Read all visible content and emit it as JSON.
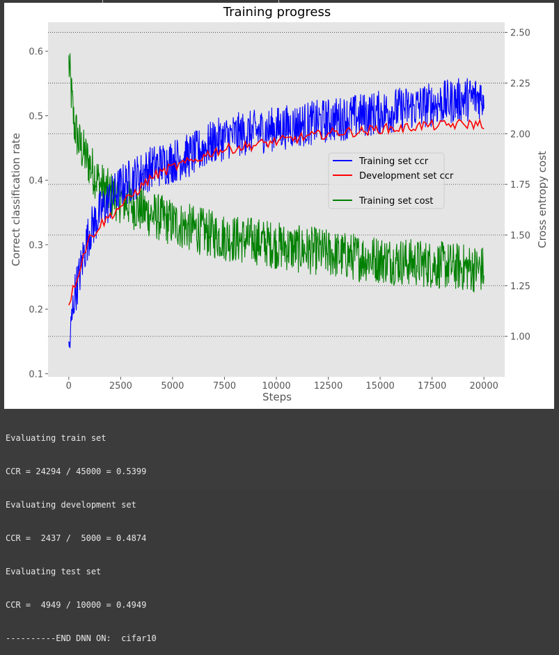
{
  "chart_data": {
    "type": "line",
    "title": "Training progress",
    "xlabel": "Steps",
    "ylabel": "Correct classification rate",
    "y2label": "Cross entropy cost",
    "xlim": [
      -1000,
      21000
    ],
    "ylim": [
      0.095,
      0.645
    ],
    "y2lim": [
      0.8,
      2.55
    ],
    "xticks": [
      0,
      2500,
      5000,
      7500,
      10000,
      12500,
      15000,
      17500,
      20000
    ],
    "xtick_labels": [
      "0",
      "2500",
      "5000",
      "7500",
      "10000",
      "12500",
      "15000",
      "17500",
      "20000"
    ],
    "yticks": [
      0.1,
      0.2,
      0.3,
      0.4,
      0.5,
      0.6
    ],
    "ytick_labels": [
      "0.1",
      "0.2",
      "0.3",
      "0.4",
      "0.5",
      "0.6"
    ],
    "y2ticks": [
      1.0,
      1.25,
      1.5,
      1.75,
      2.0,
      2.25,
      2.5
    ],
    "y2tick_labels": [
      "1.00",
      "1.25",
      "1.50",
      "1.75",
      "2.00",
      "2.25",
      "2.50"
    ],
    "grid": "dotted horizontal lines at right-axis ticks",
    "background": "#e5e5e5",
    "legend": "center-right",
    "series": [
      {
        "name": "Training set ccr",
        "axis": "left",
        "color": "#0000ff",
        "x": [
          0,
          250,
          500,
          750,
          1000,
          1500,
          2000,
          2500,
          3000,
          4000,
          5000,
          6000,
          7000,
          8000,
          9000,
          10000,
          11000,
          12000,
          13000,
          14000,
          15000,
          16000,
          17000,
          18000,
          19000,
          20000
        ],
        "values": [
          0.13,
          0.22,
          0.25,
          0.29,
          0.32,
          0.35,
          0.37,
          0.39,
          0.4,
          0.42,
          0.43,
          0.44,
          0.46,
          0.47,
          0.475,
          0.48,
          0.485,
          0.49,
          0.495,
          0.5,
          0.505,
          0.51,
          0.515,
          0.52,
          0.525,
          0.53
        ],
        "noise": 0.035
      },
      {
        "name": "Development set ccr",
        "axis": "left",
        "color": "#ff0000",
        "x": [
          0,
          250,
          500,
          750,
          1000,
          1500,
          2000,
          2500,
          3000,
          3500,
          4000,
          5000,
          6000,
          7000,
          8000,
          9000,
          10000,
          11000,
          12000,
          13000,
          14000,
          15000,
          16000,
          17000,
          18000,
          19000,
          20000
        ],
        "values": [
          0.21,
          0.235,
          0.26,
          0.29,
          0.31,
          0.33,
          0.345,
          0.36,
          0.375,
          0.39,
          0.405,
          0.42,
          0.43,
          0.445,
          0.45,
          0.455,
          0.46,
          0.465,
          0.47,
          0.475,
          0.475,
          0.48,
          0.48,
          0.485,
          0.485,
          0.487,
          0.487
        ],
        "noise": 0.008
      },
      {
        "name": "Training set cost",
        "axis": "right",
        "color": "#008000",
        "x": [
          0,
          250,
          500,
          1000,
          1500,
          2000,
          3000,
          4000,
          5000,
          6000,
          7000,
          8000,
          9000,
          10000,
          11000,
          12000,
          13000,
          14000,
          15000,
          16000,
          17000,
          18000,
          19000,
          20000
        ],
        "values": [
          2.35,
          2.05,
          1.95,
          1.85,
          1.75,
          1.7,
          1.65,
          1.6,
          1.56,
          1.53,
          1.5,
          1.48,
          1.47,
          1.45,
          1.43,
          1.42,
          1.4,
          1.39,
          1.38,
          1.37,
          1.36,
          1.35,
          1.34,
          1.33
        ],
        "noise": 0.12
      }
    ]
  },
  "console": {
    "lines": [
      "Evaluating train set",
      "CCR = 24294 / 45000 = 0.5399",
      "Evaluating development set",
      "CCR =  2437 /  5000 = 0.4874",
      "Evaluating test set",
      "CCR =  4949 / 10000 = 0.4949",
      "----------END DNN ON:  cifar10"
    ]
  }
}
